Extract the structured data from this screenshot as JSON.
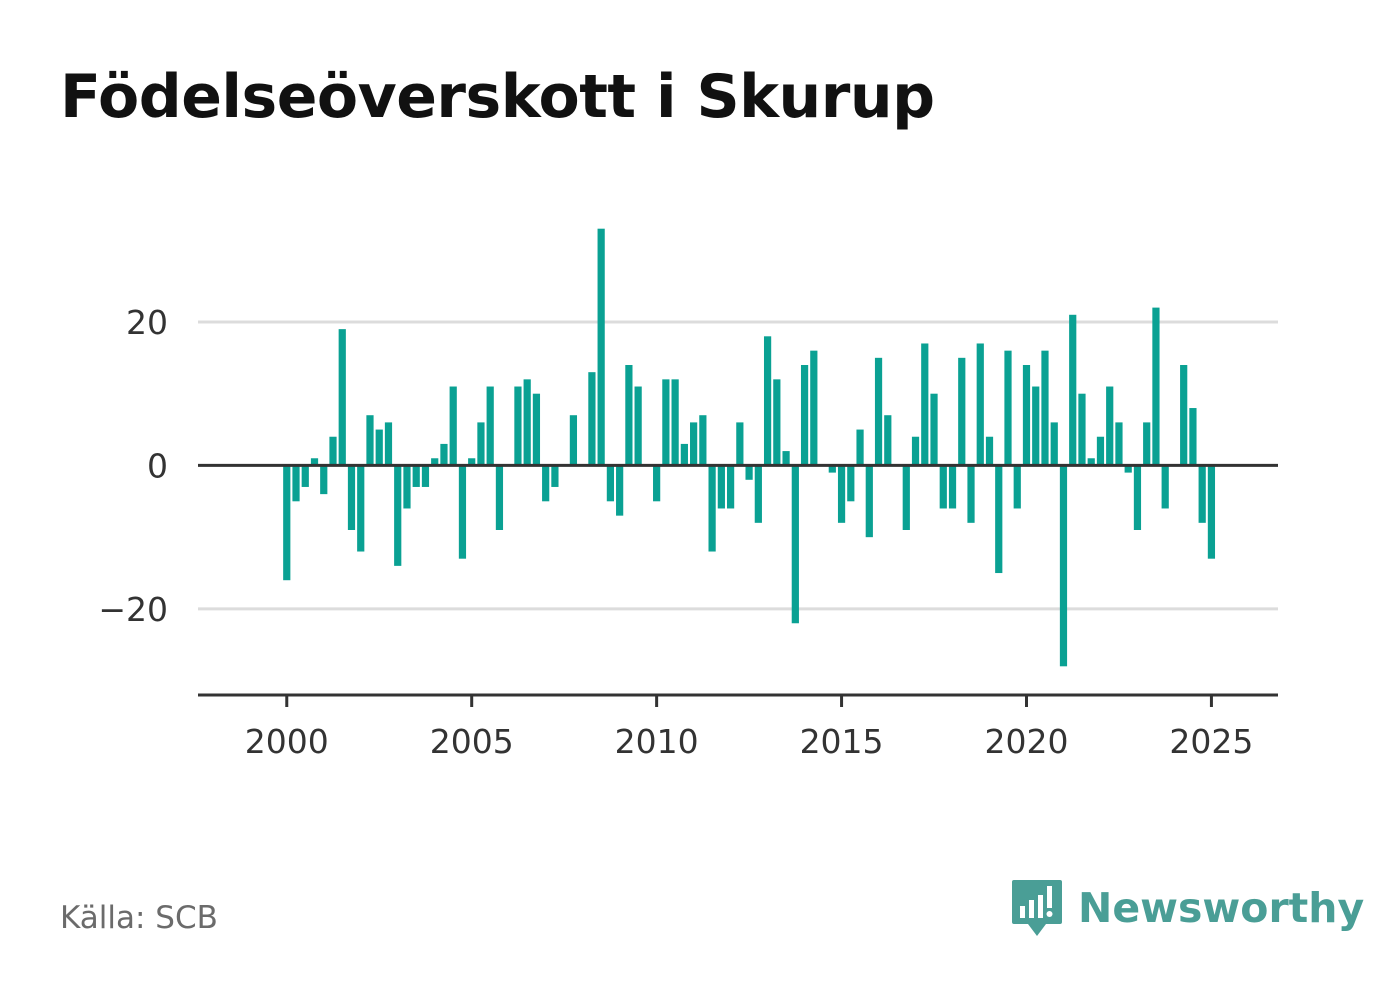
{
  "title": "Födelseöverskott i Skurup",
  "source": "Källa: SCB",
  "brand": {
    "name": "Newsworthy",
    "icon": "newsworthy-logo-icon",
    "color": "#4a9e96"
  },
  "colors": {
    "bar": "#0aa193",
    "grid": "#dcdcdc",
    "axis": "#333333"
  },
  "chart_data": {
    "type": "bar",
    "x_start": 2000.0,
    "x_step": 0.25,
    "x_unit": "year (quarterly)",
    "values": [
      -16,
      -5,
      -3,
      1,
      -4,
      4,
      19,
      -9,
      -12,
      7,
      5,
      6,
      -14,
      -6,
      -3,
      -3,
      1,
      3,
      11,
      -13,
      1,
      6,
      11,
      -9,
      0,
      11,
      12,
      10,
      -5,
      -3,
      0,
      7,
      0,
      13,
      33,
      -5,
      -7,
      14,
      11,
      0,
      -5,
      12,
      12,
      3,
      6,
      7,
      -12,
      -6,
      -6,
      6,
      -2,
      -8,
      18,
      12,
      2,
      -22,
      14,
      16,
      0,
      -1,
      -8,
      -5,
      5,
      -10,
      15,
      7,
      0,
      -9,
      4,
      17,
      10,
      -6,
      -6,
      15,
      -8,
      17,
      4,
      -15,
      16,
      -6,
      14,
      11,
      16,
      6,
      -28,
      21,
      10,
      1,
      4,
      11,
      6,
      -1,
      -9,
      6,
      22,
      -6,
      0,
      14,
      8,
      -8,
      -13
    ],
    "ylim": [
      -32,
      37
    ],
    "xlim": [
      1997.6,
      2026.8
    ],
    "y_ticks": [
      -20,
      0,
      20
    ],
    "y_tick_labels": [
      "−20",
      "0",
      "20"
    ],
    "x_ticks": [
      2000,
      2005,
      2010,
      2015,
      2020,
      2025
    ],
    "x_tick_labels": [
      "2000",
      "2005",
      "2010",
      "2015",
      "2020",
      "2025"
    ],
    "grid": true,
    "xlabel": "",
    "ylabel": ""
  }
}
